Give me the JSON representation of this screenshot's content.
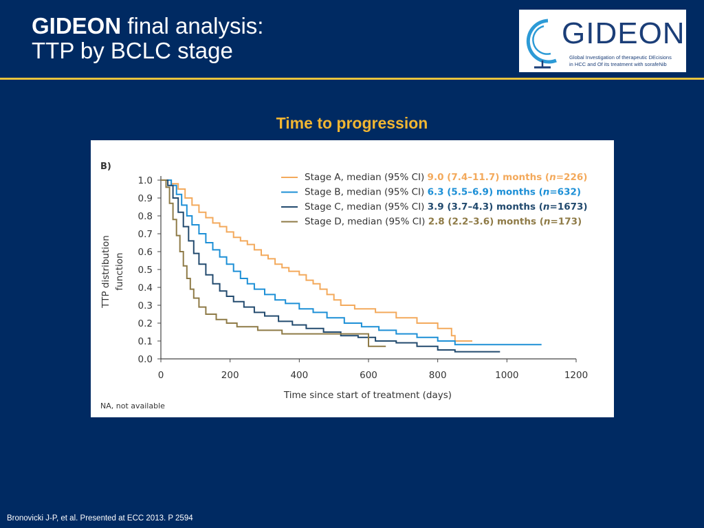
{
  "header": {
    "title_bold": "GIDEON",
    "title_rest": " final analysis:",
    "subtitle": "TTP by BCLC stage"
  },
  "logo": {
    "wordmark": "GIDEON",
    "tagline_line1": "Global Investigation of therapeutic DEcisions",
    "tagline_line2": "in HCC and Of its treatment with sorafeNib"
  },
  "section_title": "Time to progression",
  "colors": {
    "background": "#002a62",
    "gold": "#e8c33d",
    "section_title": "#f2b632",
    "stage_a": "#f3a95b",
    "stage_b": "#1c8fd6",
    "stage_c": "#224a6e",
    "stage_d": "#8e7a46"
  },
  "chart_data": {
    "type": "line",
    "panel_label": "B)",
    "xlabel": "Time since start of treatment (days)",
    "ylabel_line1": "TTP distribution",
    "ylabel_line2": "function",
    "xlim": [
      0,
      1200
    ],
    "ylim": [
      0,
      1.0
    ],
    "x_ticks": [
      0,
      200,
      400,
      600,
      800,
      1000,
      1200
    ],
    "y_ticks": [
      "0.0",
      "0.1",
      "0.2",
      "0.3",
      "0.4",
      "0.5",
      "0.6",
      "0.7",
      "0.8",
      "0.9",
      "1.0"
    ],
    "footnote": "NA, not available",
    "legend_placement": "top-right",
    "series": [
      {
        "key": "stage_a",
        "name": "Stage A, median (95% CI)",
        "median_text": "9.0 (7.4–11.7) months (",
        "n_text": "n",
        "n_value": "=226)",
        "color": "#f3a95b",
        "points": [
          [
            0,
            1.0
          ],
          [
            15,
            1.0
          ],
          [
            30,
            0.98
          ],
          [
            50,
            0.95
          ],
          [
            70,
            0.9
          ],
          [
            90,
            0.86
          ],
          [
            110,
            0.82
          ],
          [
            130,
            0.79
          ],
          [
            150,
            0.76
          ],
          [
            170,
            0.74
          ],
          [
            190,
            0.71
          ],
          [
            210,
            0.68
          ],
          [
            230,
            0.66
          ],
          [
            250,
            0.64
          ],
          [
            270,
            0.61
          ],
          [
            290,
            0.58
          ],
          [
            310,
            0.56
          ],
          [
            330,
            0.53
          ],
          [
            350,
            0.51
          ],
          [
            370,
            0.49
          ],
          [
            400,
            0.47
          ],
          [
            420,
            0.44
          ],
          [
            440,
            0.42
          ],
          [
            460,
            0.39
          ],
          [
            480,
            0.36
          ],
          [
            500,
            0.33
          ],
          [
            520,
            0.3
          ],
          [
            560,
            0.28
          ],
          [
            620,
            0.26
          ],
          [
            680,
            0.23
          ],
          [
            740,
            0.2
          ],
          [
            800,
            0.17
          ],
          [
            840,
            0.13
          ],
          [
            850,
            0.1
          ],
          [
            900,
            0.1
          ]
        ]
      },
      {
        "key": "stage_b",
        "name": "Stage B, median (95% CI)",
        "median_text": "6.3 (5.5–6.9) months (",
        "n_text": "n",
        "n_value": "=632)",
        "color": "#1c8fd6",
        "points": [
          [
            0,
            1.0
          ],
          [
            15,
            1.0
          ],
          [
            30,
            0.97
          ],
          [
            45,
            0.92
          ],
          [
            60,
            0.86
          ],
          [
            75,
            0.8
          ],
          [
            90,
            0.75
          ],
          [
            110,
            0.7
          ],
          [
            130,
            0.65
          ],
          [
            150,
            0.61
          ],
          [
            170,
            0.57
          ],
          [
            190,
            0.53
          ],
          [
            210,
            0.49
          ],
          [
            230,
            0.45
          ],
          [
            250,
            0.42
          ],
          [
            270,
            0.39
          ],
          [
            300,
            0.36
          ],
          [
            330,
            0.33
          ],
          [
            360,
            0.31
          ],
          [
            400,
            0.28
          ],
          [
            440,
            0.26
          ],
          [
            480,
            0.23
          ],
          [
            530,
            0.2
          ],
          [
            580,
            0.18
          ],
          [
            630,
            0.16
          ],
          [
            680,
            0.14
          ],
          [
            740,
            0.12
          ],
          [
            800,
            0.1
          ],
          [
            850,
            0.08
          ],
          [
            950,
            0.08
          ],
          [
            1100,
            0.08
          ]
        ]
      },
      {
        "key": "stage_c",
        "name": "Stage C, median (95% CI)",
        "median_text": "3.9 (3.7–4.3) months (",
        "n_text": "n",
        "n_value": "=1673)",
        "color": "#224a6e",
        "points": [
          [
            0,
            1.0
          ],
          [
            10,
            1.0
          ],
          [
            20,
            0.97
          ],
          [
            35,
            0.9
          ],
          [
            50,
            0.82
          ],
          [
            65,
            0.74
          ],
          [
            80,
            0.66
          ],
          [
            95,
            0.59
          ],
          [
            110,
            0.53
          ],
          [
            130,
            0.47
          ],
          [
            150,
            0.42
          ],
          [
            170,
            0.38
          ],
          [
            190,
            0.35
          ],
          [
            210,
            0.32
          ],
          [
            240,
            0.29
          ],
          [
            270,
            0.26
          ],
          [
            300,
            0.24
          ],
          [
            340,
            0.21
          ],
          [
            380,
            0.19
          ],
          [
            420,
            0.17
          ],
          [
            470,
            0.15
          ],
          [
            520,
            0.13
          ],
          [
            570,
            0.12
          ],
          [
            620,
            0.1
          ],
          [
            680,
            0.09
          ],
          [
            740,
            0.07
          ],
          [
            800,
            0.05
          ],
          [
            850,
            0.04
          ],
          [
            900,
            0.04
          ],
          [
            980,
            0.04
          ]
        ]
      },
      {
        "key": "stage_d",
        "name": "Stage D, median (95% CI)",
        "median_text": "2.8 (2.2–3.6) months (",
        "n_text": "n",
        "n_value": "=173)",
        "color": "#8e7a46",
        "points": [
          [
            0,
            1.0
          ],
          [
            8,
            1.0
          ],
          [
            15,
            0.96
          ],
          [
            25,
            0.87
          ],
          [
            35,
            0.78
          ],
          [
            45,
            0.69
          ],
          [
            55,
            0.6
          ],
          [
            65,
            0.52
          ],
          [
            75,
            0.45
          ],
          [
            85,
            0.39
          ],
          [
            95,
            0.34
          ],
          [
            110,
            0.29
          ],
          [
            130,
            0.25
          ],
          [
            160,
            0.22
          ],
          [
            190,
            0.2
          ],
          [
            220,
            0.18
          ],
          [
            280,
            0.16
          ],
          [
            350,
            0.14
          ],
          [
            420,
            0.14
          ],
          [
            500,
            0.14
          ],
          [
            580,
            0.14
          ],
          [
            600,
            0.07
          ],
          [
            650,
            0.07
          ]
        ]
      }
    ]
  },
  "source": "Bronovicki J-P, et al. Presented at ECC 2013. P 2594"
}
